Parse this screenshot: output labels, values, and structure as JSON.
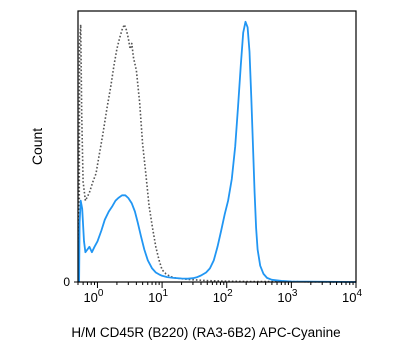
{
  "chart_data": {
    "type": "line",
    "title": "",
    "xlabel": "H/M CD45R (B220) (RA3-6B2) APC-Cyanine",
    "ylabel": "Count",
    "x_scale": "log",
    "xlim": [
      0.5,
      10000
    ],
    "ylim": [
      0,
      100
    ],
    "x_ticks": [
      {
        "value": 1,
        "base": "10",
        "exp": "0"
      },
      {
        "value": 10,
        "base": "10",
        "exp": "1"
      },
      {
        "value": 100,
        "base": "10",
        "exp": "2"
      },
      {
        "value": 1000,
        "base": "10",
        "exp": "3"
      },
      {
        "value": 10000,
        "base": "10",
        "exp": "4"
      }
    ],
    "y_ticks": [
      {
        "value": 0,
        "label": "0"
      }
    ],
    "grid": false,
    "legend": "none",
    "series": [
      {
        "style": "dotted",
        "color": "#555555",
        "points": [
          [
            0.52,
            0
          ],
          [
            0.53,
            88
          ],
          [
            0.55,
            95
          ],
          [
            0.57,
            62
          ],
          [
            0.6,
            37
          ],
          [
            0.65,
            30
          ],
          [
            0.75,
            33
          ],
          [
            0.85,
            37
          ],
          [
            0.95,
            40
          ],
          [
            1.05,
            46
          ],
          [
            1.2,
            54
          ],
          [
            1.4,
            64
          ],
          [
            1.6,
            72
          ],
          [
            1.8,
            80
          ],
          [
            2.0,
            86
          ],
          [
            2.2,
            90
          ],
          [
            2.4,
            93
          ],
          [
            2.6,
            95
          ],
          [
            2.8,
            93
          ],
          [
            3.0,
            90
          ],
          [
            3.2,
            86
          ],
          [
            3.4,
            88
          ],
          [
            3.6,
            83
          ],
          [
            4.0,
            78
          ],
          [
            4.5,
            66
          ],
          [
            5.0,
            51
          ],
          [
            5.6,
            40
          ],
          [
            6.3,
            28
          ],
          [
            7.1,
            20
          ],
          [
            8.0,
            13
          ],
          [
            9.0,
            8
          ],
          [
            10.0,
            4.5
          ],
          [
            11.5,
            3
          ],
          [
            13.0,
            2.2
          ],
          [
            15.0,
            1.6
          ],
          [
            20.0,
            1.2
          ],
          [
            30.0,
            0.8
          ],
          [
            50.0,
            0.5
          ],
          [
            100.0,
            0.3
          ],
          [
            200.0,
            0.2
          ],
          [
            1000.0,
            0.1
          ],
          [
            10000.0,
            0
          ]
        ]
      },
      {
        "style": "solid",
        "color": "#2196F3",
        "points": [
          [
            0.52,
            0
          ],
          [
            0.53,
            22
          ],
          [
            0.55,
            30
          ],
          [
            0.58,
            27
          ],
          [
            0.62,
            15
          ],
          [
            0.65,
            11
          ],
          [
            0.7,
            12
          ],
          [
            0.75,
            13
          ],
          [
            0.82,
            11
          ],
          [
            0.9,
            13
          ],
          [
            1.0,
            15
          ],
          [
            1.15,
            19
          ],
          [
            1.3,
            23
          ],
          [
            1.5,
            26
          ],
          [
            1.7,
            28
          ],
          [
            1.9,
            30
          ],
          [
            2.1,
            31
          ],
          [
            2.4,
            32
          ],
          [
            2.7,
            32
          ],
          [
            3.0,
            31
          ],
          [
            3.4,
            29
          ],
          [
            3.8,
            26
          ],
          [
            4.2,
            22
          ],
          [
            4.7,
            17
          ],
          [
            5.3,
            12
          ],
          [
            6.0,
            8
          ],
          [
            7.0,
            5
          ],
          [
            8.0,
            3.5
          ],
          [
            9.0,
            2.8
          ],
          [
            10.0,
            2.3
          ],
          [
            12.0,
            1.8
          ],
          [
            15.0,
            1.5
          ],
          [
            20.0,
            1.3
          ],
          [
            25.0,
            1.2
          ],
          [
            30.0,
            1.4
          ],
          [
            35.0,
            1.8
          ],
          [
            40.0,
            2.4
          ],
          [
            48.0,
            3.5
          ],
          [
            55.0,
            5
          ],
          [
            63.0,
            8
          ],
          [
            72.0,
            13
          ],
          [
            82.0,
            19
          ],
          [
            93.0,
            25
          ],
          [
            105.0,
            30
          ],
          [
            120.0,
            38
          ],
          [
            135.0,
            50
          ],
          [
            150.0,
            65
          ],
          [
            165.0,
            80
          ],
          [
            180.0,
            92
          ],
          [
            195.0,
            96
          ],
          [
            210.0,
            94
          ],
          [
            225.0,
            85
          ],
          [
            240.0,
            68
          ],
          [
            255.0,
            50
          ],
          [
            270.0,
            33
          ],
          [
            285.0,
            20
          ],
          [
            300.0,
            12
          ],
          [
            330.0,
            6
          ],
          [
            370.0,
            3
          ],
          [
            420.0,
            1.5
          ],
          [
            500.0,
            0.8
          ],
          [
            700.0,
            0.4
          ],
          [
            1000.0,
            0.2
          ],
          [
            10000.0,
            0
          ]
        ]
      }
    ]
  }
}
